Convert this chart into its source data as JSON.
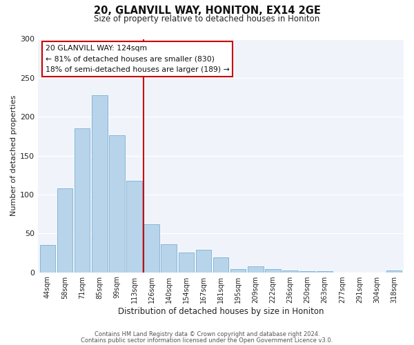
{
  "title1": "20, GLANVILL WAY, HONITON, EX14 2GE",
  "title2": "Size of property relative to detached houses in Honiton",
  "xlabel": "Distribution of detached houses by size in Honiton",
  "ylabel": "Number of detached properties",
  "bar_labels": [
    "44sqm",
    "58sqm",
    "71sqm",
    "85sqm",
    "99sqm",
    "113sqm",
    "126sqm",
    "140sqm",
    "154sqm",
    "167sqm",
    "181sqm",
    "195sqm",
    "209sqm",
    "222sqm",
    "236sqm",
    "250sqm",
    "263sqm",
    "277sqm",
    "291sqm",
    "304sqm",
    "318sqm"
  ],
  "bar_heights": [
    35,
    108,
    185,
    228,
    176,
    118,
    62,
    36,
    25,
    29,
    19,
    4,
    8,
    4,
    2,
    1,
    1,
    0,
    0,
    0,
    2
  ],
  "bar_color": "#b8d4ea",
  "bar_edge_color": "#7ab0d4",
  "ref_line_color": "#cc0000",
  "annotation_title": "20 GLANVILL WAY: 124sqm",
  "annotation_line1": "← 81% of detached houses are smaller (830)",
  "annotation_line2": "18% of semi-detached houses are larger (189) →",
  "annotation_box_color": "white",
  "annotation_box_edge": "#cc0000",
  "ylim": [
    0,
    300
  ],
  "yticks": [
    0,
    50,
    100,
    150,
    200,
    250,
    300
  ],
  "footer1": "Contains HM Land Registry data © Crown copyright and database right 2024.",
  "footer2": "Contains public sector information licensed under the Open Government Licence v3.0.",
  "bg_color": "#f0f4fa"
}
